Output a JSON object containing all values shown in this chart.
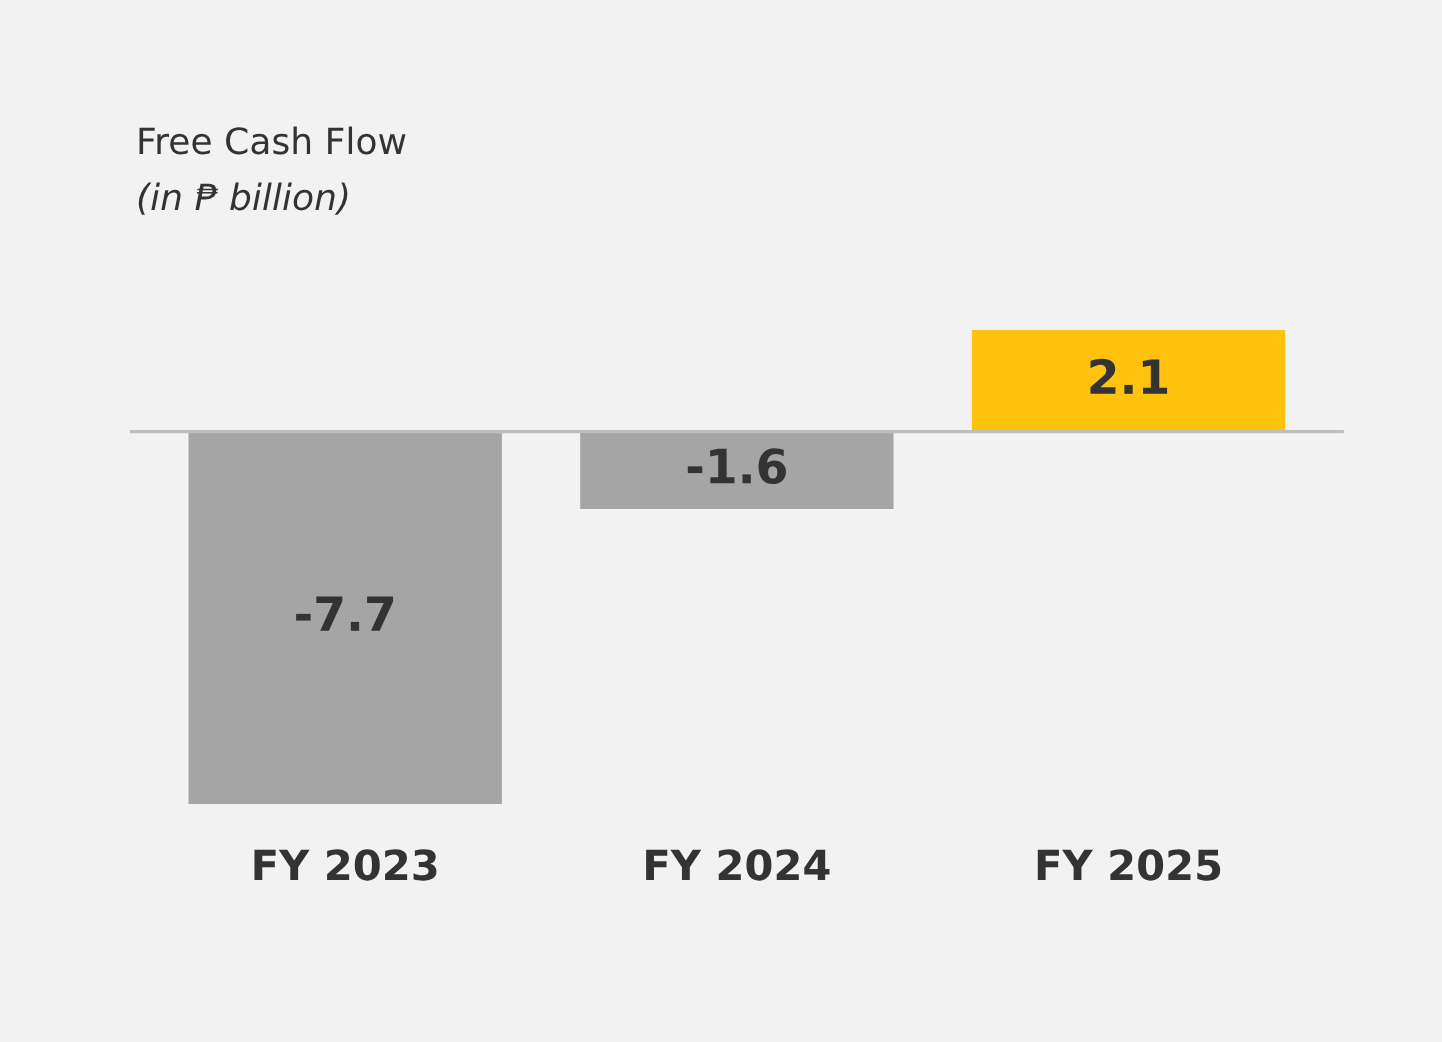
{
  "chart_data": {
    "type": "bar",
    "title": "Free Cash Flow",
    "subtitle": "(in ₱ billion)",
    "categories": [
      "FY 2023",
      "FY 2024",
      "FY 2025"
    ],
    "values": [
      -7.7,
      -1.6,
      2.1
    ],
    "colors": [
      "#a5a5a5",
      "#a5a5a5",
      "#ffc20e"
    ],
    "data_labels": true
  }
}
